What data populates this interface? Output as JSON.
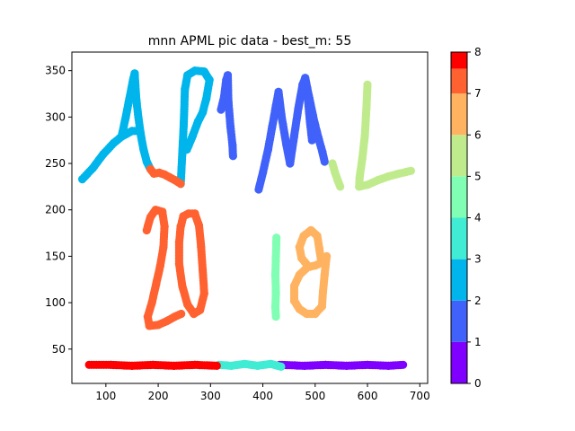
{
  "chart_data": {
    "type": "scatter",
    "title": "mnn APML pic data - best_m: 55",
    "xlim": [
      35,
      715
    ],
    "ylim": [
      13,
      370
    ],
    "x_ticks": [
      100,
      200,
      300,
      400,
      500,
      600,
      700
    ],
    "y_ticks": [
      50,
      100,
      150,
      200,
      250,
      300,
      350
    ],
    "grid": false,
    "colorbar": {
      "min": 0,
      "max": 8,
      "ticks": [
        0,
        1,
        2,
        3,
        4,
        5,
        6,
        7,
        8
      ],
      "bands": [
        "#8000ff",
        "#4062fa",
        "#00b5eb",
        "#40ecd4",
        "#80ffb4",
        "#c0eb8d",
        "#ffb360",
        "#ff6230"
      ],
      "top_color": "#ff0000"
    },
    "clusters": [
      {
        "label": 0,
        "color": "#8000ff",
        "strokes": [
          [
            [
              432,
              33
            ],
            [
              480,
              32
            ],
            [
              520,
              33
            ],
            [
              560,
              32
            ],
            [
              600,
              33
            ],
            [
              640,
              32
            ],
            [
              668,
              33
            ]
          ]
        ]
      },
      {
        "label": 1,
        "color": "#4062fa",
        "strokes": [
          [
            [
              392,
              222
            ],
            [
              400,
              240
            ],
            [
              410,
              265
            ],
            [
              418,
              290
            ],
            [
              425,
              312
            ],
            [
              430,
              327
            ],
            [
              436,
              300
            ],
            [
              445,
              270
            ],
            [
              452,
              250
            ]
          ],
          [
            [
              452,
              250
            ],
            [
              460,
              280
            ],
            [
              468,
              310
            ],
            [
              476,
              335
            ],
            [
              481,
              342
            ],
            [
              486,
              320
            ],
            [
              490,
              295
            ],
            [
              494,
              275
            ]
          ],
          [
            [
              481,
              342
            ],
            [
              489,
              320
            ],
            [
              498,
              296
            ],
            [
              506,
              278
            ],
            [
              514,
              262
            ],
            [
              518,
              252
            ]
          ],
          [
            [
              320,
              308
            ],
            [
              326,
              322
            ],
            [
              330,
              340
            ],
            [
              333,
              345
            ],
            [
              334,
              318
            ],
            [
              338,
              290
            ],
            [
              342,
              270
            ],
            [
              343,
              258
            ]
          ]
        ]
      },
      {
        "label": 2,
        "color": "#00b5eb",
        "strokes": [
          [
            [
              55,
              233
            ],
            [
              75,
              245
            ],
            [
              95,
              260
            ],
            [
              115,
              272
            ],
            [
              130,
              279
            ],
            [
              140,
              282
            ],
            [
              150,
              285
            ],
            [
              165,
              285
            ]
          ],
          [
            [
              130,
              279
            ],
            [
              138,
              300
            ],
            [
              145,
              320
            ],
            [
              152,
              340
            ],
            [
              155,
              347
            ],
            [
              158,
              320
            ],
            [
              162,
              300
            ],
            [
              167,
              280
            ],
            [
              172,
              265
            ],
            [
              178,
              252
            ],
            [
              185,
              244
            ]
          ],
          [
            [
              243,
              228
            ],
            [
              246,
              260
            ],
            [
              249,
              295
            ],
            [
              251,
              330
            ],
            [
              256,
              345
            ],
            [
              270,
              350
            ],
            [
              288,
              349
            ],
            [
              298,
              340
            ],
            [
              292,
              320
            ],
            [
              285,
              305
            ],
            [
              276,
              295
            ],
            [
              266,
              280
            ],
            [
              255,
              265
            ]
          ]
        ]
      },
      {
        "label": 3,
        "color": "#40ecd4",
        "strokes": [
          [
            [
              316,
              33
            ],
            [
              340,
              32
            ],
            [
              365,
              34
            ],
            [
              390,
              32
            ],
            [
              415,
              34
            ],
            [
              435,
              31
            ]
          ]
        ]
      },
      {
        "label": 4,
        "color": "#80ffb4",
        "strokes": [
          [
            [
              426,
              170
            ],
            [
              425,
              150
            ],
            [
              424,
              130
            ],
            [
              425,
              110
            ],
            [
              424,
              95
            ],
            [
              425,
              85
            ]
          ]
        ]
      },
      {
        "label": 5,
        "color": "#c0eb8d",
        "strokes": [
          [
            [
              600,
              335
            ],
            [
              598,
              310
            ],
            [
              595,
              280
            ],
            [
              590,
              255
            ],
            [
              585,
              235
            ],
            [
              584,
              225
            ],
            [
              600,
              227
            ],
            [
              620,
              232
            ],
            [
              640,
              236
            ],
            [
              660,
              239
            ],
            [
              683,
              242
            ]
          ],
          [
            [
              533,
              250
            ],
            [
              538,
              240
            ],
            [
              543,
              232
            ],
            [
              548,
              225
            ]
          ]
        ]
      },
      {
        "label": 6,
        "color": "#ffb360",
        "strokes": [
          [
            [
              522,
              150
            ],
            [
              518,
              130
            ],
            [
              515,
              112
            ],
            [
              513,
              96
            ],
            [
              500,
              88
            ],
            [
              484,
              88
            ],
            [
              470,
              93
            ],
            [
              460,
              102
            ],
            [
              460,
              118
            ],
            [
              470,
              130
            ],
            [
              485,
              138
            ],
            [
              500,
              140
            ],
            [
              512,
              143
            ]
          ],
          [
            [
              512,
              143
            ],
            [
              508,
              158
            ],
            [
              504,
              172
            ],
            [
              492,
              178
            ],
            [
              478,
              172
            ],
            [
              470,
              160
            ],
            [
              474,
              148
            ],
            [
              486,
              140
            ]
          ]
        ]
      },
      {
        "label": 7,
        "color": "#ff6230",
        "strokes": [
          [
            [
              212,
              238
            ],
            [
              222,
              235
            ],
            [
              232,
              232
            ],
            [
              243,
              228
            ]
          ],
          [
            [
              178,
              178
            ],
            [
              185,
              192
            ],
            [
              195,
              200
            ],
            [
              208,
              198
            ],
            [
              212,
              182
            ],
            [
              210,
              160
            ],
            [
              204,
              140
            ],
            [
              196,
              120
            ],
            [
              188,
              100
            ],
            [
              180,
              85
            ],
            [
              183,
              75
            ],
            [
              200,
              76
            ],
            [
              216,
              80
            ],
            [
              232,
              85
            ],
            [
              244,
              88
            ]
          ],
          [
            [
              243,
              182
            ],
            [
              248,
              193
            ],
            [
              258,
              196
            ],
            [
              270,
              196
            ],
            [
              278,
              183
            ],
            [
              282,
              160
            ],
            [
              285,
              135
            ],
            [
              288,
              110
            ],
            [
              280,
              92
            ],
            [
              268,
              88
            ],
            [
              256,
              98
            ],
            [
              246,
              118
            ],
            [
              240,
              142
            ],
            [
              240,
              165
            ],
            [
              243,
              182
            ]
          ],
          [
            [
              185,
              244
            ],
            [
              192,
              239
            ],
            [
              202,
              240
            ],
            [
              212,
              238
            ]
          ]
        ]
      },
      {
        "label": 8,
        "color": "#ff0000",
        "strokes": [
          [
            [
              68,
              33
            ],
            [
              110,
              33
            ],
            [
              150,
              32
            ],
            [
              190,
              33
            ],
            [
              230,
              32
            ],
            [
              270,
              33
            ],
            [
              312,
              32
            ]
          ]
        ]
      }
    ]
  }
}
